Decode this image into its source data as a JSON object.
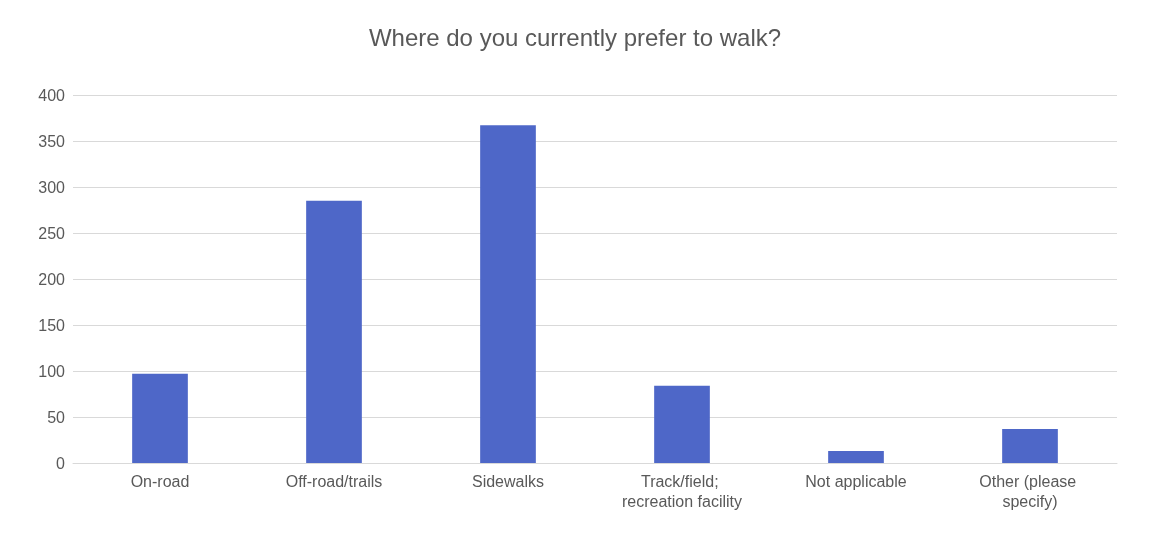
{
  "chart_data": {
    "type": "bar",
    "title": "Where do you currently prefer to walk?",
    "categories": [
      "On-road",
      "Off-road/trails",
      "Sidewalks",
      "Track/field; recreation facility",
      "Not applicable",
      "Other (please specify)"
    ],
    "values": [
      97,
      285,
      367,
      84,
      13,
      37
    ],
    "color": "#4e67c8",
    "ylim": [
      0,
      400
    ],
    "yticks": [
      0,
      50,
      100,
      150,
      200,
      250,
      300,
      350,
      400
    ],
    "grid": "y"
  }
}
